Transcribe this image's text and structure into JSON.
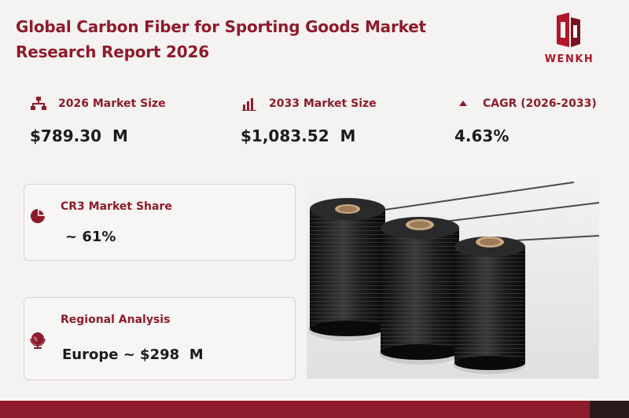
{
  "report": {
    "title_line1": "Global Carbon Fiber for Sporting Goods Market",
    "title_line2": "Research Report 2026"
  },
  "brand": {
    "logo_text": "WENKH"
  },
  "stats": [
    {
      "label": "2026 Market Size",
      "value": "$789.30  M",
      "icon": "network-icon"
    },
    {
      "label": "2033 Market Size",
      "value": "$1,083.52  M",
      "icon": "bar-chart-icon"
    },
    {
      "label": "CAGR (2026-2033)",
      "value": "4.63%",
      "icon": "triangle-up-icon"
    }
  ],
  "cards": {
    "cr3": {
      "label": "CR3 Market Share",
      "value": "~ 61%",
      "icon": "pie-chart-icon"
    },
    "regional": {
      "label": "Regional Analysis",
      "value": "Europe ~ $298  M",
      "icon": "globe-icon"
    }
  },
  "image": {
    "subject": "carbon-fiber-spools"
  },
  "colors": {
    "accent": "#8e1b2b",
    "background": "#f5f3f2",
    "text": "#1c1c1c"
  }
}
